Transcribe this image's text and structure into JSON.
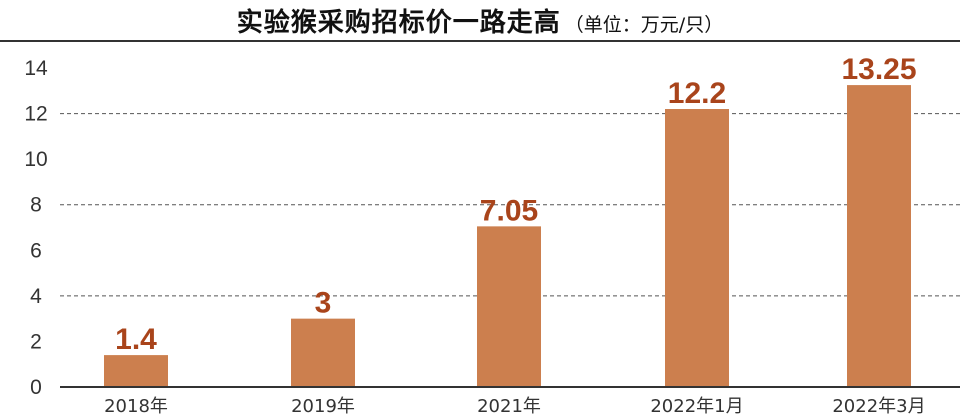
{
  "chart_data": {
    "type": "bar",
    "title": "实验猴采购招标价一路走高",
    "unit": "（单位：万元/只）",
    "categories": [
      "2018年",
      "2019年",
      "2021年",
      "2022年1月",
      "2022年3月"
    ],
    "values": [
      1.4,
      3,
      7.05,
      12.2,
      13.25
    ],
    "data_labels": [
      "1.4",
      "3",
      "7.05",
      "12.2",
      "13.25"
    ],
    "y_ticks": [
      "0",
      "2",
      "4",
      "6",
      "8",
      "10",
      "12",
      "14"
    ],
    "ylim": [
      0,
      14
    ],
    "grid": "dashed horizontal at 4, 8, 12",
    "bar_color": "#CC7F4E",
    "label_color": "#A9441B"
  }
}
